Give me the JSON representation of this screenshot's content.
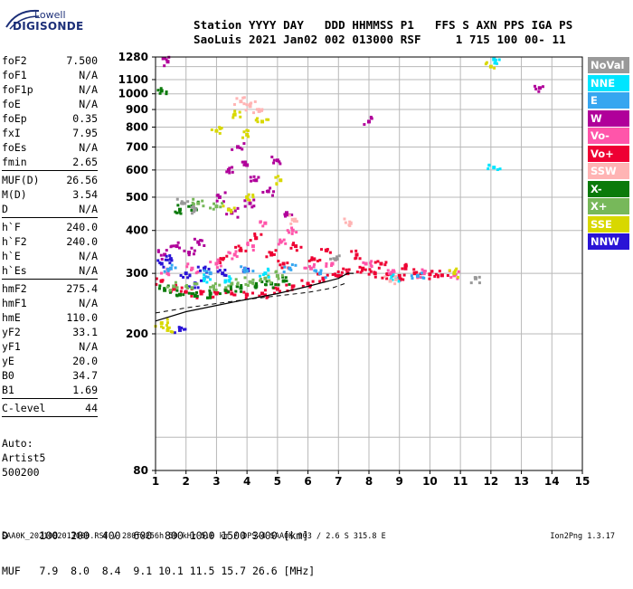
{
  "logo": {
    "line1": "Lowell",
    "line2": "DIGISONDE"
  },
  "header": {
    "line1": "Station YYYY DAY   DDD HHMMSS P1   FFS S AXN PPS IGA PS",
    "line2": "SaoLuis 2021 Jan02 002 013000 RSF     1 715 100 00- 11"
  },
  "params_groups": [
    [
      [
        "foF2",
        "7.500"
      ],
      [
        "foF1",
        "N/A"
      ],
      [
        "foF1p",
        "N/A"
      ],
      [
        "foE",
        "N/A"
      ],
      [
        "foEp",
        "0.35"
      ],
      [
        "fxI",
        "7.95"
      ],
      [
        "foEs",
        "N/A"
      ],
      [
        "fmin",
        "2.65"
      ]
    ],
    [
      [
        "MUF(D)",
        "26.56"
      ],
      [
        "M(D)",
        "3.54"
      ],
      [
        "D",
        "N/A"
      ]
    ],
    [
      [
        "h`F",
        "240.0"
      ],
      [
        "h`F2",
        "240.0"
      ],
      [
        "h`E",
        "N/A"
      ],
      [
        "h`Es",
        "N/A"
      ]
    ],
    [
      [
        "hmF2",
        "275.4"
      ],
      [
        "hmF1",
        "N/A"
      ],
      [
        "hmE",
        "110.0"
      ],
      [
        "yF2",
        "33.1"
      ],
      [
        "yF1",
        "N/A"
      ],
      [
        "yE",
        "20.0"
      ],
      [
        "B0",
        "34.7"
      ],
      [
        "B1",
        "1.69"
      ]
    ],
    [
      [
        "C-level",
        "44"
      ]
    ]
  ],
  "auto": {
    "l1": "Auto:",
    "l2": "Artist5",
    "l3": "500200"
  },
  "dmuf": {
    "d_line": "D     100  200  400  600  800 1000 1500 3000 [km]",
    "muf_line": "MUF   7.9  8.0  8.4  9.1 10.1 11.5 15.7 26.6 [MHz]"
  },
  "footer": {
    "left": "SAA0K_2021002013000.RSF / 280fx256h 50 kHz 5.0 km / DPS-4 SAA0K 903 / 2.6 S 315.8 E",
    "right": "Ion2Png 1.3.17"
  },
  "legend": [
    {
      "label": "NoVal",
      "color": "#999999"
    },
    {
      "label": "NNE",
      "color": "#00e5ff"
    },
    {
      "label": "E",
      "color": "#36a6f0"
    },
    {
      "label": "W",
      "color": "#b0009a"
    },
    {
      "label": "Vo-",
      "color": "#ff55aa"
    },
    {
      "label": "Vo+",
      "color": "#ee0033"
    },
    {
      "label": "SSW",
      "color": "#ffb4b4"
    },
    {
      "label": "X-",
      "color": "#0b7a0b"
    },
    {
      "label": "X+",
      "color": "#77b85a"
    },
    {
      "label": "SSE",
      "color": "#d8d800"
    },
    {
      "label": "NNW",
      "color": "#2a14d6"
    }
  ],
  "chart_data": {
    "type": "scatter",
    "title": "",
    "xlabel": "",
    "ylabel": "",
    "xlim": [
      1,
      15
    ],
    "ylim": [
      80,
      1280
    ],
    "yscale": "log",
    "x_ticks": [
      1,
      2,
      3,
      4,
      5,
      6,
      7,
      8,
      9,
      10,
      11,
      12,
      13,
      14,
      15
    ],
    "y_ticks": [
      80,
      200,
      300,
      400,
      500,
      600,
      700,
      800,
      900,
      1000,
      1100,
      1280
    ],
    "grid": true,
    "legend_position": "right",
    "series": [
      {
        "name": "Vo+",
        "color": "#ee0033",
        "points": [
          [
            1.2,
            285
          ],
          [
            1.6,
            270
          ],
          [
            2.0,
            265
          ],
          [
            2.5,
            262
          ],
          [
            3.0,
            262
          ],
          [
            3.5,
            262
          ],
          [
            4.0,
            260
          ],
          [
            4.5,
            262
          ],
          [
            5.0,
            270
          ],
          [
            5.5,
            275
          ],
          [
            6.0,
            280
          ],
          [
            6.5,
            290
          ],
          [
            7.0,
            295
          ],
          [
            7.3,
            300
          ],
          [
            7.8,
            310
          ],
          [
            8.2,
            300
          ],
          [
            8.6,
            298
          ],
          [
            9.0,
            295
          ],
          [
            9.5,
            300
          ],
          [
            10.0,
            298
          ],
          [
            10.4,
            296
          ],
          [
            3.2,
            330
          ],
          [
            3.8,
            350
          ],
          [
            4.3,
            380
          ],
          [
            4.8,
            340
          ],
          [
            5.2,
            320
          ],
          [
            5.6,
            360
          ],
          [
            6.2,
            330
          ],
          [
            6.6,
            350
          ],
          [
            7.6,
            340
          ],
          [
            8.4,
            320
          ],
          [
            9.2,
            310
          ]
        ]
      },
      {
        "name": "Vo-",
        "color": "#ff55aa",
        "points": [
          [
            1.4,
            300
          ],
          [
            2.2,
            310
          ],
          [
            3.0,
            320
          ],
          [
            3.6,
            340
          ],
          [
            4.2,
            360
          ],
          [
            4.6,
            420
          ],
          [
            5.1,
            370
          ],
          [
            5.5,
            400
          ],
          [
            6.1,
            310
          ],
          [
            6.8,
            320
          ],
          [
            7.9,
            320
          ],
          [
            8.8,
            305
          ],
          [
            9.8,
            300
          ],
          [
            10.8,
            296
          ]
        ]
      },
      {
        "name": "W",
        "color": "#b0009a",
        "points": [
          [
            1.3,
            340
          ],
          [
            1.7,
            360
          ],
          [
            2.1,
            345
          ],
          [
            2.4,
            370
          ],
          [
            3.1,
            500
          ],
          [
            3.4,
            600
          ],
          [
            3.7,
            700
          ],
          [
            4.0,
            620
          ],
          [
            4.3,
            560
          ],
          [
            4.7,
            520
          ],
          [
            5.0,
            640
          ],
          [
            5.3,
            450
          ],
          [
            3.5,
            450
          ],
          [
            4.1,
            480
          ],
          [
            8.0,
            830
          ],
          [
            13.6,
            1040
          ],
          [
            1.4,
            1240
          ]
        ]
      },
      {
        "name": "NNW",
        "color": "#2a14d6",
        "points": [
          [
            1.2,
            320
          ],
          [
            1.5,
            330
          ],
          [
            2.0,
            300
          ],
          [
            2.6,
            310
          ],
          [
            3.2,
            300
          ],
          [
            3.9,
            305
          ],
          [
            1.8,
            205
          ],
          [
            2.3,
            280
          ]
        ]
      },
      {
        "name": "X-",
        "color": "#0b7a0b",
        "points": [
          [
            1.3,
            268
          ],
          [
            1.8,
            260
          ],
          [
            2.3,
            258
          ],
          [
            2.8,
            262
          ],
          [
            3.3,
            268
          ],
          [
            3.8,
            272
          ],
          [
            4.3,
            275
          ],
          [
            4.8,
            280
          ],
          [
            5.2,
            285
          ],
          [
            1.2,
            1020
          ],
          [
            1.8,
            460
          ],
          [
            2.2,
            470
          ]
        ]
      },
      {
        "name": "X+",
        "color": "#77b85a",
        "points": [
          [
            1.6,
            275
          ],
          [
            2.2,
            272
          ],
          [
            2.9,
            275
          ],
          [
            3.5,
            280
          ],
          [
            4.1,
            283
          ],
          [
            4.6,
            290
          ],
          [
            5.0,
            295
          ],
          [
            2.4,
            480
          ],
          [
            3.0,
            470
          ]
        ]
      },
      {
        "name": "SSE",
        "color": "#d8d800",
        "points": [
          [
            1.2,
            215
          ],
          [
            1.4,
            205
          ],
          [
            3.0,
            780
          ],
          [
            3.6,
            870
          ],
          [
            4.0,
            760
          ],
          [
            4.5,
            830
          ],
          [
            5.1,
            560
          ],
          [
            4.0,
            500
          ],
          [
            3.4,
            460
          ],
          [
            12.0,
            1200
          ],
          [
            10.8,
            300
          ]
        ]
      },
      {
        "name": "NNE",
        "color": "#00e5ff",
        "points": [
          [
            2.6,
            290
          ],
          [
            3.3,
            285
          ],
          [
            4.6,
            300
          ],
          [
            12.1,
            610
          ],
          [
            12.1,
            1260
          ],
          [
            8.9,
            290
          ]
        ]
      },
      {
        "name": "E",
        "color": "#36a6f0",
        "points": [
          [
            1.5,
            310
          ],
          [
            2.8,
            300
          ],
          [
            4.0,
            305
          ],
          [
            5.4,
            310
          ],
          [
            6.4,
            300
          ],
          [
            9.6,
            295
          ]
        ]
      },
      {
        "name": "SSW",
        "color": "#ffb4b4",
        "points": [
          [
            3.8,
            950
          ],
          [
            4.1,
            920
          ],
          [
            4.4,
            890
          ],
          [
            5.5,
            430
          ],
          [
            7.4,
            420
          ],
          [
            8.7,
            285
          ]
        ]
      },
      {
        "name": "NoVal",
        "color": "#999999",
        "points": [
          [
            1.9,
            480
          ],
          [
            2.3,
            460
          ],
          [
            6.9,
            330
          ],
          [
            11.5,
            290
          ]
        ]
      }
    ],
    "profile_curve": [
      [
        1.0,
        218
      ],
      [
        2.0,
        232
      ],
      [
        3.0,
        242
      ],
      [
        4.0,
        252
      ],
      [
        5.0,
        262
      ],
      [
        6.0,
        275
      ],
      [
        7.0,
        290
      ],
      [
        7.3,
        300
      ],
      [
        7.5,
        300
      ]
    ],
    "trace_curve": [
      [
        1.0,
        230
      ],
      [
        2.0,
        238
      ],
      [
        3.0,
        245
      ],
      [
        4.0,
        252
      ],
      [
        5.0,
        258
      ],
      [
        6.0,
        264
      ],
      [
        6.8,
        272
      ],
      [
        7.2,
        280
      ]
    ]
  }
}
